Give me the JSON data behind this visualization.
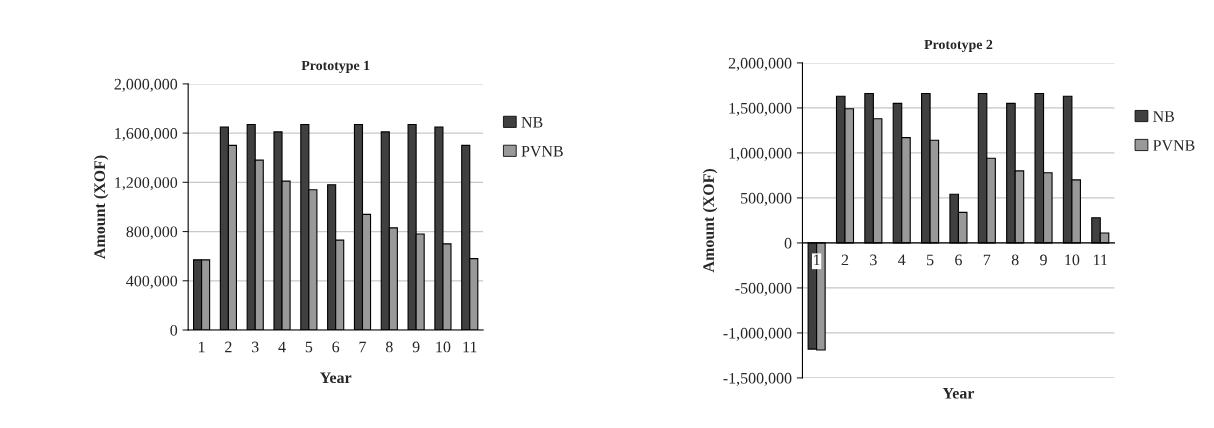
{
  "chart_data": [
    {
      "type": "bar",
      "title": "Prototype 1",
      "xlabel": "Year",
      "ylabel": "Amount (XOF)",
      "categories": [
        "1",
        "2",
        "3",
        "4",
        "5",
        "6",
        "7",
        "8",
        "9",
        "10",
        "11"
      ],
      "series": [
        {
          "name": "NB",
          "color": "#404040",
          "values": [
            570000,
            1650000,
            1670000,
            1610000,
            1670000,
            1180000,
            1670000,
            1610000,
            1670000,
            1650000,
            1500000
          ]
        },
        {
          "name": "PVNB",
          "color": "#999999",
          "values": [
            570000,
            1500000,
            1380000,
            1210000,
            1140000,
            730000,
            940000,
            830000,
            780000,
            700000,
            580000
          ]
        }
      ],
      "ylim": [
        0,
        2000000
      ],
      "yticks": [
        {
          "value": 0,
          "label": "0"
        },
        {
          "value": 400000,
          "label": "400,000"
        },
        {
          "value": 800000,
          "label": "800,000"
        },
        {
          "value": 1200000,
          "label": "1,200,000"
        },
        {
          "value": 1600000,
          "label": "1,600,000"
        },
        {
          "value": 2000000,
          "label": "2,000,000"
        }
      ],
      "grid": "y",
      "legend": "right"
    },
    {
      "type": "bar",
      "title": "Prototype 2",
      "xlabel": "Year",
      "ylabel": "Amount (XOF)",
      "categories": [
        "1",
        "2",
        "3",
        "4",
        "5",
        "6",
        "7",
        "8",
        "9",
        "10",
        "11"
      ],
      "series": [
        {
          "name": "NB",
          "color": "#404040",
          "values": [
            -1180000,
            1630000,
            1660000,
            1550000,
            1660000,
            540000,
            1660000,
            1550000,
            1660000,
            1630000,
            280000
          ]
        },
        {
          "name": "PVNB",
          "color": "#999999",
          "values": [
            -1190000,
            1490000,
            1380000,
            1170000,
            1140000,
            340000,
            940000,
            800000,
            780000,
            700000,
            110000
          ]
        }
      ],
      "ylim": [
        -1500000,
        2000000
      ],
      "yticks": [
        {
          "value": -1500000,
          "label": "-1,500,000"
        },
        {
          "value": -1000000,
          "label": "-1,000,000"
        },
        {
          "value": -500000,
          "label": "-500,000"
        },
        {
          "value": 0,
          "label": "0"
        },
        {
          "value": 500000,
          "label": "500,000"
        },
        {
          "value": 1000000,
          "label": "1,000,000"
        },
        {
          "value": 1500000,
          "label": "1,500,000"
        },
        {
          "value": 2000000,
          "label": "2,000,000"
        }
      ],
      "grid": "y",
      "legend": "right"
    }
  ]
}
